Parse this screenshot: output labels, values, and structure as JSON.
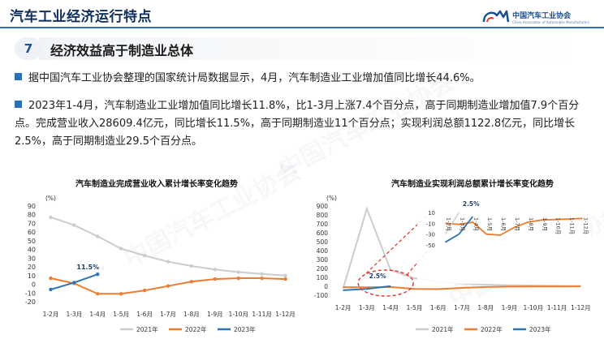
{
  "header": {
    "title": "汽车工业经济运行特点",
    "logo_cn": "中国汽车工业协会",
    "logo_en": "China Association of Automobile Manufacturers"
  },
  "section": {
    "number": "7",
    "title": "经济效益高于制造业总体"
  },
  "paragraphs": [
    "据中国汽车工业协会整理的国家统计局数据显示，4月，汽车制造业工业增加值同比增长44.6%。",
    "2023年1-4月，汽车制造业工业增加值同比增长11.8%，比1-3月上涨7.4个百分点，高于同期制造业增加值7.9个百分点。完成营业收入28609.4亿元，同比增长11.5%，高于同期制造业11个百分点；实现利润总额1122.8亿元，同比增长2.5%，高于同期制造业29.5个百分点。"
  ],
  "colors": {
    "y2021": "#cccccc",
    "y2022": "#ed7d31",
    "y2023": "#2e75b6",
    "brand": "#1b4f93"
  },
  "chart_data": [
    {
      "type": "line",
      "title": "汽车制造业完成营业收入累计增长率变化趋势",
      "ylabel": "(%)",
      "ylim": [
        -20,
        90
      ],
      "yticks": [
        90,
        80,
        70,
        60,
        50,
        40,
        30,
        20,
        10,
        0,
        -10,
        -20
      ],
      "categories": [
        "1-2月",
        "1-3月",
        "1-4月",
        "1-5月",
        "1-6月",
        "1-7月",
        "1-8月",
        "1-9月",
        "1-10月",
        "1-11月",
        "1-12月"
      ],
      "legend": [
        "2021年",
        "2022年",
        "2023年"
      ],
      "series": [
        {
          "name": "2021年",
          "values": [
            77,
            68,
            55,
            41,
            33,
            26,
            21,
            17,
            14,
            12,
            10
          ]
        },
        {
          "name": "2022年",
          "values": [
            7,
            1,
            -11,
            -11,
            -7,
            -2,
            3,
            6,
            7,
            7,
            6
          ]
        },
        {
          "name": "2023年",
          "values": [
            -6,
            2,
            11.5,
            null,
            null,
            null,
            null,
            null,
            null,
            null,
            null
          ]
        }
      ],
      "annotations": [
        {
          "label": "11.5%"
        }
      ]
    },
    {
      "type": "line",
      "title": "汽车制造业实现利润总额累计增长率变化趋势",
      "ylabel": "(%)",
      "ylim": [
        -100,
        900
      ],
      "yticks": [
        900,
        800,
        700,
        600,
        500,
        400,
        300,
        200,
        100,
        0,
        -100
      ],
      "categories": [
        "1-2月",
        "1-3月",
        "1-4月",
        "1-5月",
        "1-6月",
        "1-7月",
        "1-8月",
        "1-9月",
        "1-10月",
        "1-11月",
        "1-12月"
      ],
      "legend": [
        "2021年",
        "2022年",
        "2023年"
      ],
      "series": [
        {
          "name": "2021年",
          "values": [
            -25,
            870,
            180,
            90,
            50,
            30,
            18,
            12,
            8,
            5,
            4
          ]
        },
        {
          "name": "2022年",
          "values": [
            -10,
            -12,
            -8,
            -30,
            -32,
            -18,
            -8,
            -4,
            -3,
            -2,
            -1
          ]
        },
        {
          "name": "2023年",
          "values": [
            -45,
            -30,
            2.5,
            null,
            null,
            null,
            null,
            null,
            null,
            null,
            null
          ]
        }
      ],
      "annotations": [
        {
          "label": "2.5%"
        }
      ],
      "inset": {
        "ylim": [
          -50,
          10
        ],
        "yticks": [
          10,
          -10,
          -30,
          -50
        ],
        "categories": [
          "1-2月",
          "1-3月",
          "1-4月",
          "1-5月",
          "1-6月",
          "1-7月",
          "1-8月",
          "1-9月",
          "1-10月",
          "1-11月",
          "1-12月"
        ],
        "annotation": "2.5%"
      }
    }
  ]
}
